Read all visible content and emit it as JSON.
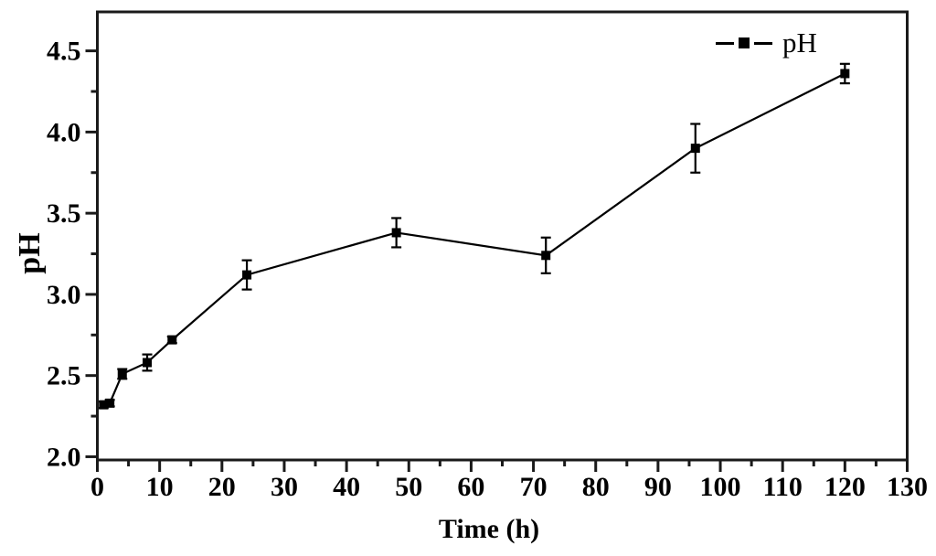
{
  "chart_data": {
    "type": "line",
    "title": "",
    "xlabel": "Time (h)",
    "ylabel": "pH",
    "legend": {
      "label": "pH",
      "position": "top-right",
      "marker": "filled-square",
      "line_style": "dash-marker-dash"
    },
    "x": [
      1,
      2,
      4,
      8,
      12,
      24,
      48,
      72,
      96,
      120
    ],
    "series": [
      {
        "name": "pH",
        "values": [
          2.32,
          2.33,
          2.51,
          2.58,
          2.72,
          3.12,
          3.38,
          3.24,
          3.9,
          4.36
        ],
        "errors": [
          0.02,
          0.02,
          0.03,
          0.05,
          0.02,
          0.09,
          0.09,
          0.11,
          0.15,
          0.06
        ]
      }
    ],
    "xlim": [
      0,
      130
    ],
    "ylim": [
      1.98,
      4.74
    ],
    "x_ticks": {
      "major": [
        0,
        10,
        20,
        30,
        40,
        50,
        60,
        70,
        80,
        90,
        100,
        110,
        120,
        130
      ],
      "major_labels": [
        "0",
        "10",
        "20",
        "30",
        "40",
        "50",
        "60",
        "70",
        "80",
        "90",
        "100",
        "110",
        "120",
        "130"
      ],
      "minor": [
        5,
        15,
        25,
        35,
        45,
        55,
        65,
        75,
        85,
        95,
        105,
        115,
        125
      ]
    },
    "y_ticks": {
      "major": [
        2.0,
        2.5,
        3.0,
        3.5,
        4.0,
        4.5
      ],
      "major_labels": [
        "2.0",
        "2.5",
        "3.0",
        "3.5",
        "4.0",
        "4.5"
      ],
      "minor": [
        2.25,
        2.75,
        3.25,
        3.75,
        4.25
      ]
    },
    "grid": false,
    "colors": {
      "line": "#000000",
      "marker": "#000000",
      "error_bar": "#000000",
      "axis": "#1a1a1a",
      "text": "#000000",
      "background": "#ffffff"
    }
  }
}
